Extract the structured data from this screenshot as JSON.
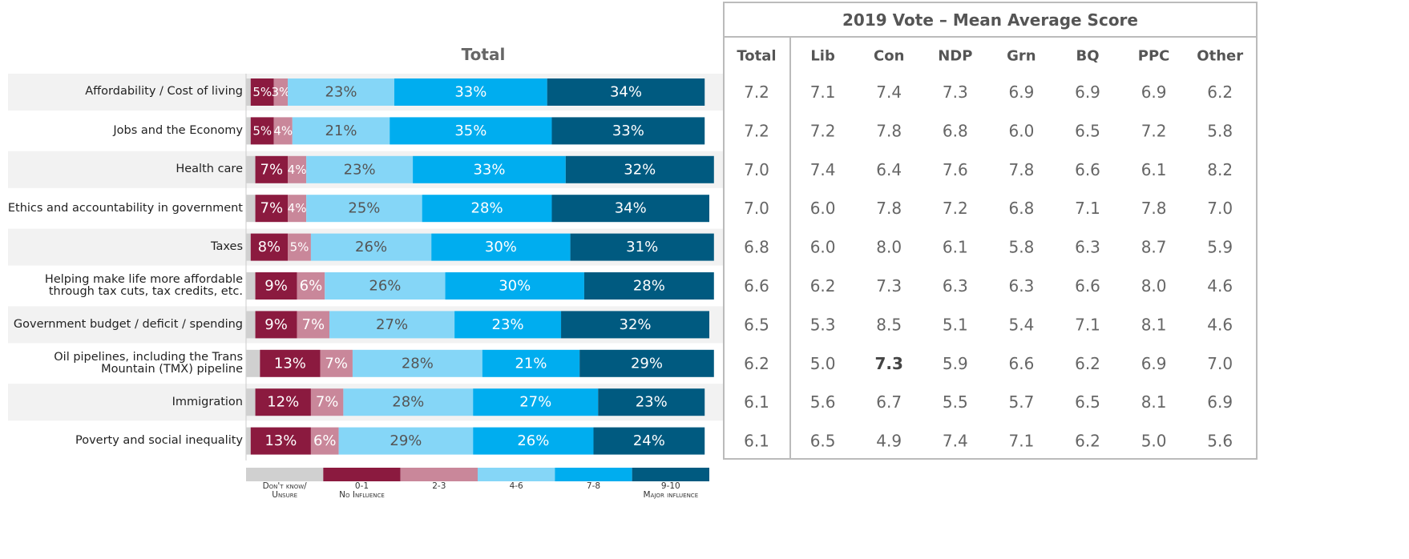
{
  "chart_data": {
    "type": "bar",
    "orientation": "horizontal",
    "stacked": true,
    "title": "Total",
    "categories": [
      "Affordability / Cost of living",
      "Jobs and the Economy",
      "Health care",
      "Ethics and accountability in government",
      "Taxes",
      "Helping make life more affordable through tax cuts, tax credits, etc.",
      "Government budget / deficit / spending",
      "Oil pipelines, including the Trans Mountain (TMX) pipeline",
      "Immigration",
      "Poverty and social inequality"
    ],
    "xlim": [
      0,
      100
    ],
    "series": [
      {
        "name": "Don't know/\nUnsure",
        "color": "#d0d0d0",
        "label_color": "#555555",
        "values": [
          1,
          1,
          2,
          2,
          1,
          2,
          2,
          3,
          2,
          1
        ]
      },
      {
        "name": "0-1\nNo Influence",
        "color": "#8b1a3f",
        "label_color": "#ffffff",
        "values": [
          5,
          5,
          7,
          7,
          8,
          9,
          9,
          13,
          12,
          13
        ],
        "value_labels": [
          "5%",
          "5%",
          "7%",
          "7%",
          "8%",
          "9%",
          "9%",
          "13%",
          "12%",
          "13%"
        ]
      },
      {
        "name": "2-3",
        "color": "#c9879a",
        "label_color": "#ffffff",
        "values": [
          3,
          4,
          4,
          4,
          5,
          6,
          7,
          7,
          7,
          6
        ],
        "value_labels": [
          "3%",
          "4%",
          "4%",
          "4%",
          "5%",
          "6%",
          "7%",
          "7%",
          "7%",
          "6%"
        ]
      },
      {
        "name": "4-6",
        "color": "#85d6f7",
        "label_color": "#555555",
        "values": [
          23,
          21,
          23,
          25,
          26,
          26,
          27,
          28,
          28,
          29
        ],
        "value_labels": [
          "23%",
          "21%",
          "23%",
          "25%",
          "26%",
          "26%",
          "27%",
          "28%",
          "28%",
          "29%"
        ]
      },
      {
        "name": "7-8",
        "color": "#00adef",
        "label_color": "#ffffff",
        "values": [
          33,
          35,
          33,
          28,
          30,
          30,
          23,
          21,
          27,
          26
        ],
        "value_labels": [
          "33%",
          "35%",
          "33%",
          "28%",
          "30%",
          "30%",
          "23%",
          "21%",
          "27%",
          "26%"
        ]
      },
      {
        "name": "9-10\nMajor influence",
        "color": "#005a80",
        "label_color": "#ffffff",
        "values": [
          34,
          33,
          32,
          34,
          31,
          28,
          32,
          29,
          23,
          24
        ],
        "value_labels": [
          "34%",
          "33%",
          "32%",
          "34%",
          "31%",
          "28%",
          "32%",
          "29%",
          "23%",
          "24%"
        ]
      }
    ]
  },
  "table": {
    "title": "2019 Vote – Mean Average Score",
    "columns": [
      "Total",
      "Lib",
      "Con",
      "NDP",
      "Grn",
      "BQ",
      "PPC",
      "Other"
    ],
    "rows": [
      [
        "7.2",
        "7.1",
        "7.4",
        "7.3",
        "6.9",
        "6.9",
        "6.9",
        "6.2"
      ],
      [
        "7.2",
        "7.2",
        "7.8",
        "6.8",
        "6.0",
        "6.5",
        "7.2",
        "5.8"
      ],
      [
        "7.0",
        "7.4",
        "6.4",
        "7.6",
        "7.8",
        "6.6",
        "6.1",
        "8.2"
      ],
      [
        "7.0",
        "6.0",
        "7.8",
        "7.2",
        "6.8",
        "7.1",
        "7.8",
        "7.0"
      ],
      [
        "6.8",
        "6.0",
        "8.0",
        "6.1",
        "5.8",
        "6.3",
        "8.7",
        "5.9"
      ],
      [
        "6.6",
        "6.2",
        "7.3",
        "6.3",
        "6.3",
        "6.6",
        "8.0",
        "4.6"
      ],
      [
        "6.5",
        "5.3",
        "8.5",
        "5.1",
        "5.4",
        "7.1",
        "8.1",
        "4.6"
      ],
      [
        "6.2",
        "5.0",
        "7.3",
        "5.9",
        "6.6",
        "6.2",
        "6.9",
        "7.0"
      ],
      [
        "6.1",
        "5.6",
        "6.7",
        "5.5",
        "5.7",
        "6.5",
        "8.1",
        "6.9"
      ],
      [
        "6.1",
        "6.5",
        "4.9",
        "7.4",
        "7.1",
        "6.2",
        "5.0",
        "5.6"
      ]
    ],
    "bold_cells": [
      {
        "row": 7,
        "col": 2
      }
    ]
  }
}
